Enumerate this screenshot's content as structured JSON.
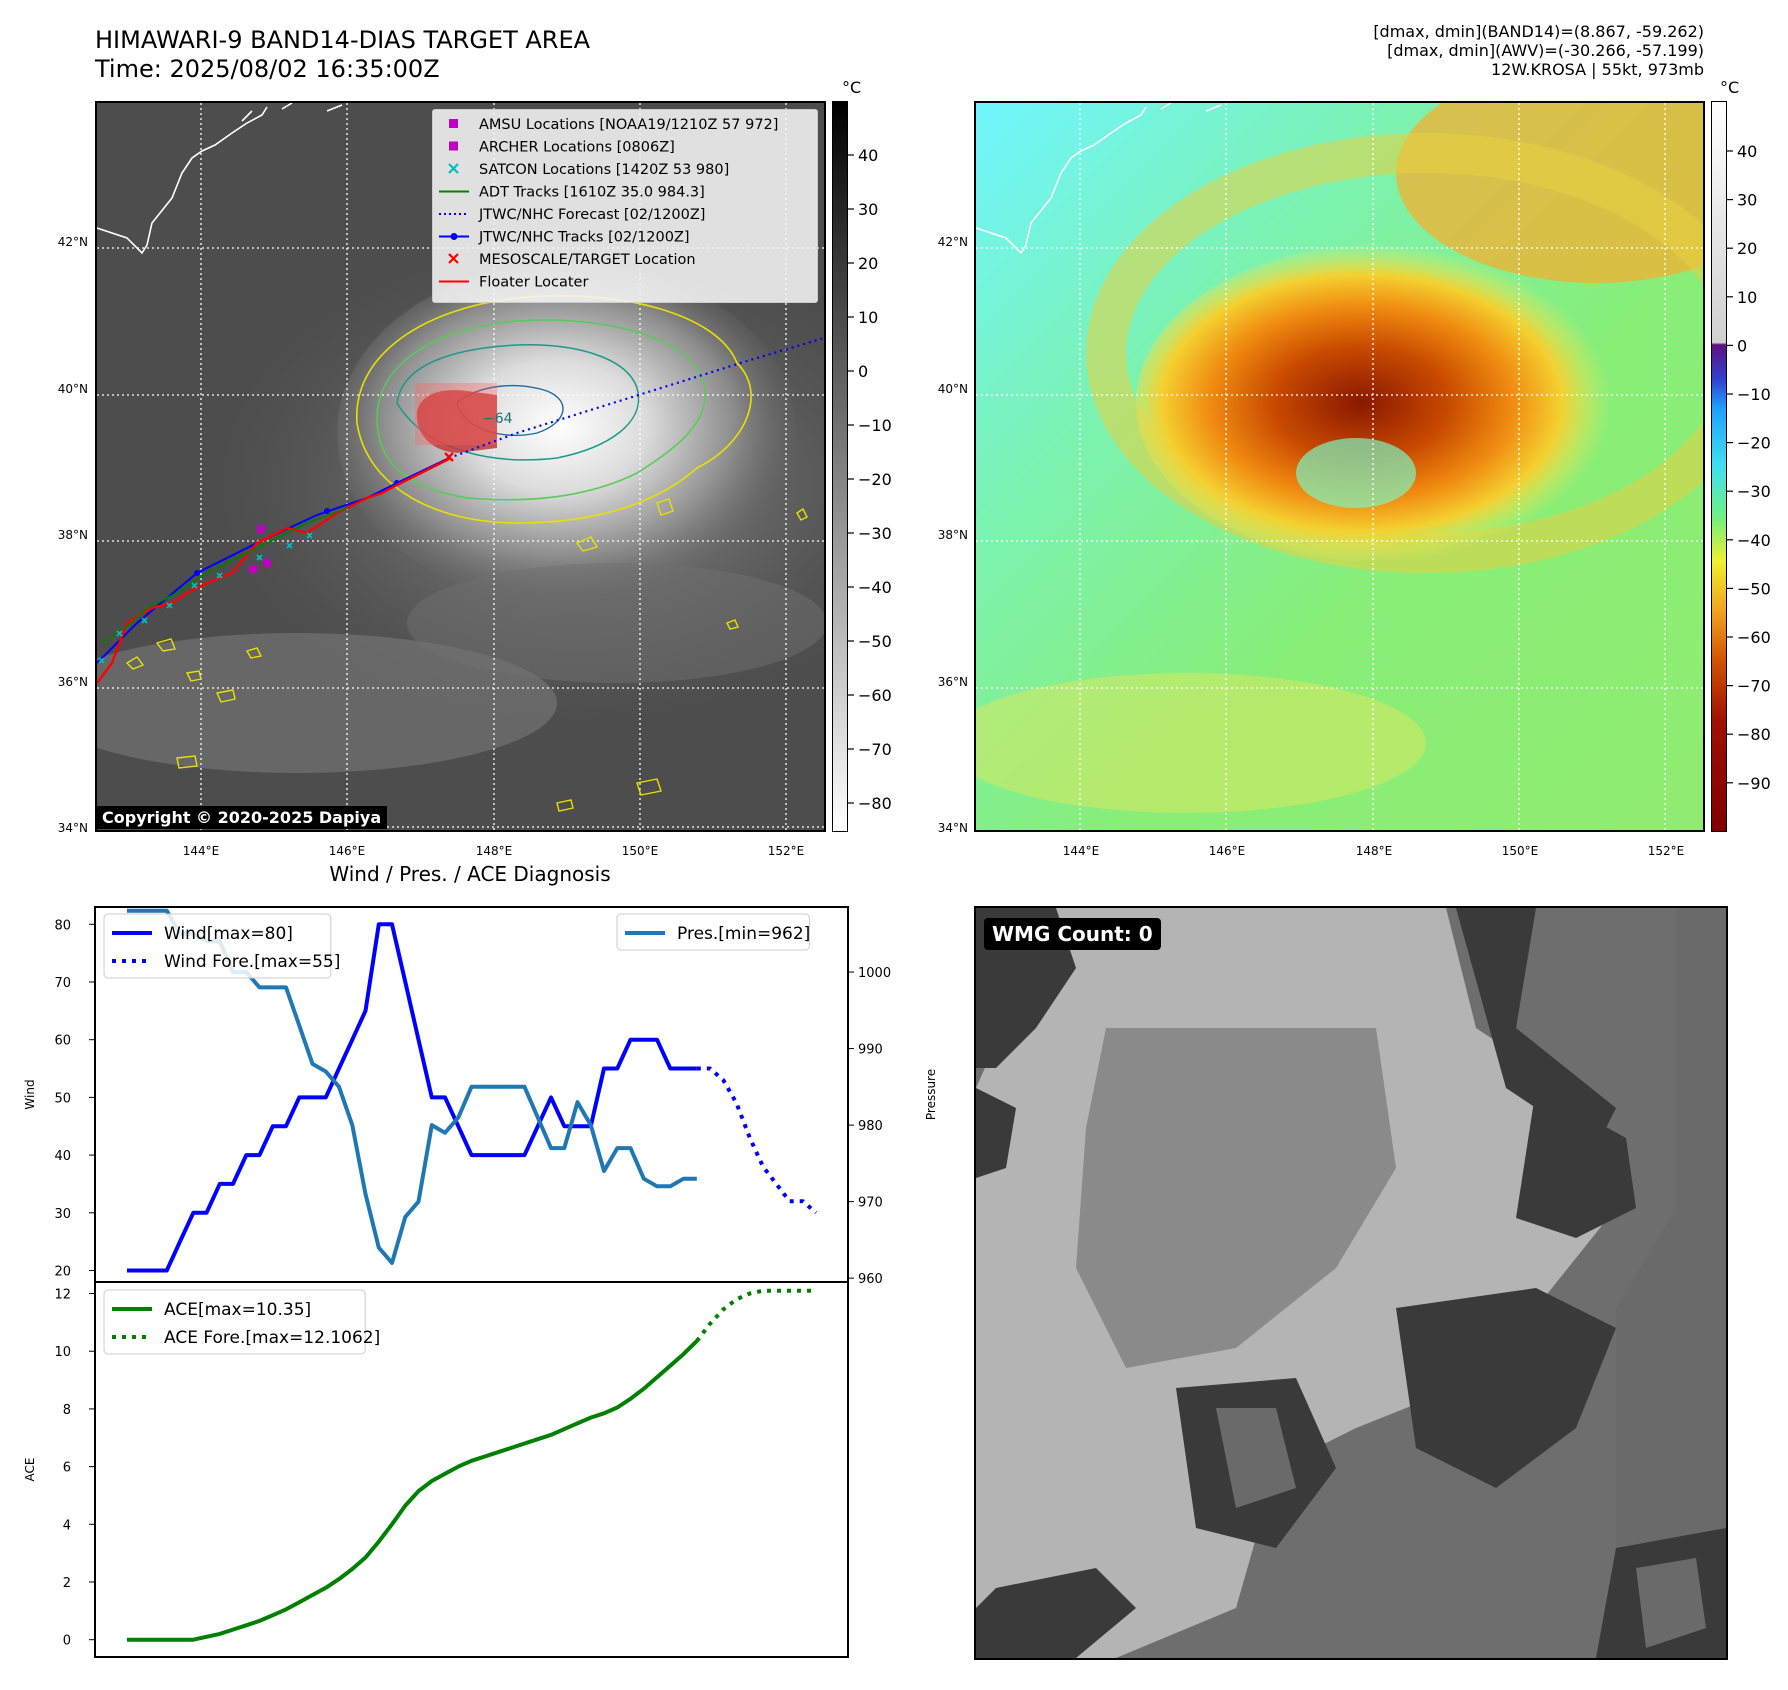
{
  "header": {
    "title_line1": "HIMAWARI-9 BAND14-DIAS TARGET AREA",
    "title_line2": "Time: 2025/08/02 16:35:00Z",
    "info_line1": "[dmax, dmin](BAND14)=(8.867, -59.262)",
    "info_line2": "[dmax, dmin](AWV)=(-30.266, -57.199)",
    "info_line3": "12W.KROSA | 55kt, 973mb"
  },
  "map": {
    "lat_labels": [
      "34°N",
      "36°N",
      "38°N",
      "40°N",
      "42°N"
    ],
    "lon_labels": [
      "144°E",
      "146°E",
      "148°E",
      "150°E",
      "152°E"
    ],
    "contour_label": "−64",
    "copyright": "Copyright © 2020-2025 Dapiya",
    "legend": [
      {
        "label": "AMSU Locations [NOAA19/1210Z 57 972]",
        "color": "#c000c0",
        "marker": "square"
      },
      {
        "label": "ARCHER Locations [0806Z]",
        "color": "#c000c0",
        "marker": "square"
      },
      {
        "label": "SATCON Locations [1420Z 53 980]",
        "color": "#00bfbf",
        "marker": "x"
      },
      {
        "label": "ADT Tracks [1610Z 35.0 984.3]",
        "color": "#008000",
        "marker": "line"
      },
      {
        "label": "JTWC/NHC Forecast [02/1200Z]",
        "color": "#0000ff",
        "marker": "dotted"
      },
      {
        "label": "JTWC/NHC Tracks [02/1200Z]",
        "color": "#0000ff",
        "marker": "line-dot"
      },
      {
        "label": "MESOSCALE/TARGET Location",
        "color": "#ff0000",
        "marker": "x"
      },
      {
        "label": "Floater Locater",
        "color": "#ff0000",
        "marker": "line"
      }
    ]
  },
  "colorbars": {
    "unit": "°C",
    "gray_ticks": [
      "40",
      "30",
      "20",
      "10",
      "0",
      "−10",
      "−20",
      "−30",
      "−40",
      "−50",
      "−60",
      "−70",
      "−80"
    ],
    "color_ticks": [
      "40",
      "30",
      "20",
      "10",
      "0",
      "−10",
      "−20",
      "−30",
      "−40",
      "−50",
      "−60",
      "−70",
      "−80",
      "−90"
    ]
  },
  "diagnosis": {
    "title": "Wind / Pres. / ACE Diagnosis",
    "wind_ylabel": "Wind",
    "pres_ylabel": "Pressure",
    "ace_ylabel": "ACE",
    "wind_ticks": [
      "20",
      "30",
      "40",
      "50",
      "60",
      "70",
      "80"
    ],
    "pres_ticks": [
      "960",
      "970",
      "980",
      "990",
      "1000"
    ],
    "ace_ticks": [
      "0",
      "2",
      "4",
      "6",
      "8",
      "10",
      "12"
    ]
  },
  "wmg": {
    "label": "WMG Count: 0"
  },
  "chart_data": [
    {
      "type": "line",
      "title": "Wind / Pres. / ACE Diagnosis",
      "ylabel": "Wind",
      "ylim": [
        18,
        83
      ],
      "series": [
        {
          "name": "Wind[max=80]",
          "color": "#0000ff",
          "style": "solid",
          "x": [
            0,
            1,
            2,
            3,
            4,
            5,
            6,
            7,
            8,
            9,
            10,
            11,
            12,
            13,
            14,
            15,
            16,
            17,
            18,
            19,
            20,
            21,
            22,
            23,
            24,
            25,
            26,
            27,
            28,
            29,
            30,
            31,
            32,
            33,
            34,
            35,
            36,
            37,
            38,
            39,
            40,
            41,
            42,
            43
          ],
          "values": [
            20,
            20,
            20,
            20,
            25,
            30,
            30,
            35,
            35,
            40,
            40,
            45,
            45,
            50,
            50,
            50,
            55,
            60,
            65,
            80,
            80,
            70,
            60,
            50,
            50,
            45,
            40,
            40,
            40,
            40,
            40,
            45,
            50,
            45,
            45,
            45,
            55,
            55,
            60,
            60,
            60,
            55,
            55,
            55
          ]
        },
        {
          "name": "Wind Fore.[max=55]",
          "color": "#0000ff",
          "style": "dotted",
          "x": [
            43,
            44,
            45,
            46,
            47,
            48,
            49,
            50,
            51,
            52
          ],
          "values": [
            55,
            55,
            53,
            49,
            43,
            38,
            35,
            32,
            32,
            30
          ]
        },
        {
          "name": "Pres.[min=962]",
          "color": "#1f77b4",
          "style": "solid",
          "axis": "right",
          "ylim": [
            959.5,
            1008.5
          ],
          "x": [
            0,
            1,
            2,
            3,
            4,
            5,
            6,
            7,
            8,
            9,
            10,
            11,
            12,
            13,
            14,
            15,
            16,
            17,
            18,
            19,
            20,
            21,
            22,
            23,
            24,
            25,
            26,
            27,
            28,
            29,
            30,
            31,
            32,
            33,
            34,
            35,
            36,
            37,
            38,
            39,
            40,
            41,
            42,
            43
          ],
          "values": [
            1008,
            1008,
            1008,
            1008,
            1005,
            1005,
            1004,
            1004,
            1000,
            1000,
            998,
            998,
            998,
            993,
            988,
            987,
            985,
            980,
            971,
            964,
            962,
            968,
            970,
            980,
            979,
            981,
            985,
            985,
            985,
            985,
            985,
            981,
            977,
            977,
            983,
            980,
            974,
            977,
            977,
            973,
            972,
            972,
            973,
            973
          ]
        }
      ]
    },
    {
      "type": "line",
      "ylabel": "ACE",
      "ylim": [
        -0.6,
        12.4
      ],
      "series": [
        {
          "name": "ACE[max=10.35]",
          "color": "#008000",
          "style": "solid",
          "x": [
            0,
            1,
            2,
            3,
            4,
            5,
            6,
            7,
            8,
            9,
            10,
            11,
            12,
            13,
            14,
            15,
            16,
            17,
            18,
            19,
            20,
            21,
            22,
            23,
            24,
            25,
            26,
            27,
            28,
            29,
            30,
            31,
            32,
            33,
            34,
            35,
            36,
            37,
            38,
            39,
            40,
            41,
            42,
            43
          ],
          "values": [
            0,
            0,
            0,
            0,
            0,
            0,
            0.1,
            0.2,
            0.35,
            0.5,
            0.65,
            0.85,
            1.05,
            1.3,
            1.55,
            1.8,
            2.1,
            2.45,
            2.85,
            3.4,
            4.0,
            4.65,
            5.15,
            5.5,
            5.75,
            6.0,
            6.2,
            6.35,
            6.5,
            6.65,
            6.8,
            6.95,
            7.1,
            7.3,
            7.5,
            7.7,
            7.85,
            8.05,
            8.35,
            8.7,
            9.1,
            9.5,
            9.9,
            10.35
          ]
        },
        {
          "name": "ACE Fore.[max=12.1062]",
          "color": "#008000",
          "style": "dotted",
          "x": [
            43,
            44,
            45,
            46,
            47,
            48,
            49,
            50,
            51,
            52
          ],
          "values": [
            10.35,
            10.95,
            11.45,
            11.8,
            12.0,
            12.1,
            12.1,
            12.1,
            12.1,
            12.1
          ]
        }
      ]
    }
  ]
}
